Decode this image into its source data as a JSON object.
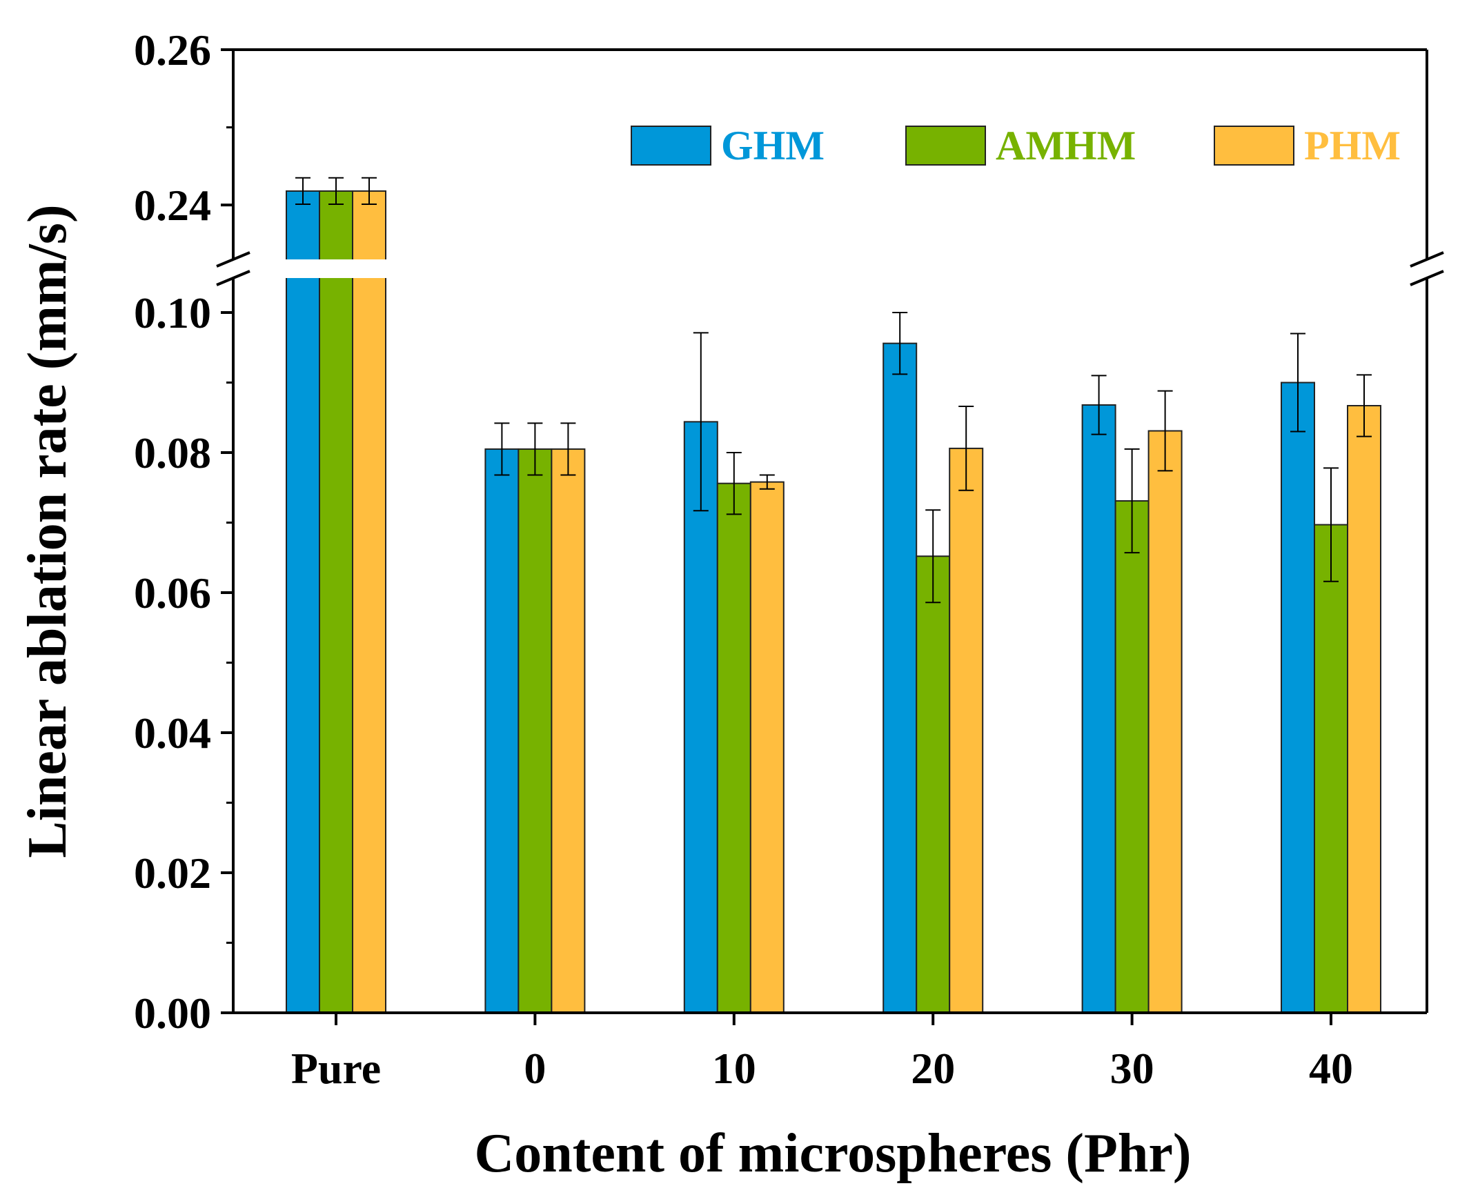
{
  "chart_data": {
    "type": "bar",
    "title": "",
    "xlabel": "Content of microspheres (Phr)",
    "ylabel": "Linear ablation rate (mm/s)",
    "categories": [
      "Pure",
      "0",
      "10",
      "20",
      "30",
      "40"
    ],
    "axis_break": {
      "from": 0.1,
      "to": 0.233
    },
    "ylim_lower": [
      0,
      0.1
    ],
    "ylim_upper": [
      0.233,
      0.26
    ],
    "yticks": [
      "0.00",
      "0.02",
      "0.04",
      "0.06",
      "0.08",
      "0.10",
      "0.24",
      "0.26"
    ],
    "legend_position": "top-right",
    "series": [
      {
        "name": "GHM",
        "color": "#0097D9",
        "values": [
          0.2418,
          0.0805,
          0.0844,
          0.0956,
          0.0868,
          0.09
        ],
        "errors": [
          0.0017,
          0.0037,
          0.0127,
          0.0044,
          0.0042,
          0.007
        ]
      },
      {
        "name": "AMHM",
        "color": "#77B200",
        "values": [
          0.2418,
          0.0805,
          0.0756,
          0.0652,
          0.0731,
          0.0697
        ],
        "errors": [
          0.0017,
          0.0037,
          0.0044,
          0.0066,
          0.0074,
          0.0081
        ]
      },
      {
        "name": "PHM",
        "color": "#FFBE3F",
        "values": [
          0.2418,
          0.0805,
          0.0758,
          0.0806,
          0.0831,
          0.0867
        ],
        "errors": [
          0.0017,
          0.0037,
          0.001,
          0.006,
          0.0057,
          0.0044
        ]
      }
    ]
  }
}
